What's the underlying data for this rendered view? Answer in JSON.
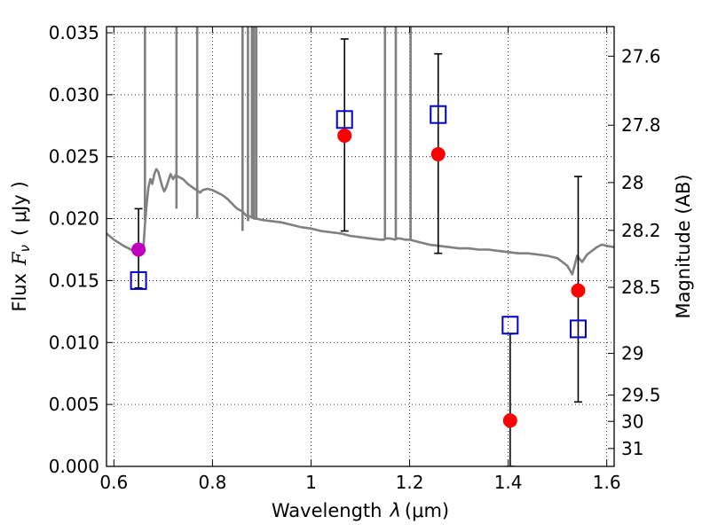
{
  "chart_data": {
    "type": "scatter",
    "xlabel_main": "Wavelength",
    "xlabel_symbol": "λ",
    "xlabel_unit": "(μm)",
    "ylabel_main": "Flux",
    "ylabel_symbol": "F",
    "ylabel_symbol_sub": "ν",
    "ylabel_unit": "( μJy )",
    "ylabel_right": "Magnitude (AB)",
    "xlim": [
      0.585,
      1.615
    ],
    "ylim": [
      0.0,
      0.0355
    ],
    "x_ticks": [
      {
        "value": 0.6,
        "label": "0.6"
      },
      {
        "value": 0.8,
        "label": "0.8"
      },
      {
        "value": 1.0,
        "label": "1"
      },
      {
        "value": 1.2,
        "label": "1.2"
      },
      {
        "value": 1.4,
        "label": "1.4"
      },
      {
        "value": 1.6,
        "label": "1.6"
      }
    ],
    "y_ticks": [
      {
        "value": 0.0,
        "label": "0.000"
      },
      {
        "value": 0.005,
        "label": "0.005"
      },
      {
        "value": 0.01,
        "label": "0.010"
      },
      {
        "value": 0.015,
        "label": "0.015"
      },
      {
        "value": 0.02,
        "label": "0.020"
      },
      {
        "value": 0.025,
        "label": "0.025"
      },
      {
        "value": 0.03,
        "label": "0.030"
      },
      {
        "value": 0.035,
        "label": "0.035"
      }
    ],
    "right_ticks": [
      {
        "label": "27.6",
        "mag": 27.6
      },
      {
        "label": "27.8",
        "mag": 27.8
      },
      {
        "label": "28",
        "mag": 28.0
      },
      {
        "label": "28.2",
        "mag": 28.2
      },
      {
        "label": "28.5",
        "mag": 28.5
      },
      {
        "label": "29",
        "mag": 29.0
      },
      {
        "label": "29.5",
        "mag": 29.5
      },
      {
        "label": "30",
        "mag": 30.0
      },
      {
        "label": "31",
        "mag": 31.0
      }
    ],
    "grid": true,
    "colors": {
      "spectrum": "#808080",
      "observed": "#ff0000",
      "observed_first": "#c000c0",
      "model": "#0000cc",
      "errorbar": "#000000"
    },
    "spectrum": {
      "x": [
        0.585,
        0.6,
        0.62,
        0.64,
        0.65,
        0.655,
        0.66,
        0.663,
        0.666,
        0.67,
        0.674,
        0.678,
        0.682,
        0.686,
        0.69,
        0.694,
        0.698,
        0.702,
        0.706,
        0.71,
        0.715,
        0.72,
        0.725,
        0.73,
        0.74,
        0.75,
        0.76,
        0.768,
        0.775,
        0.78,
        0.79,
        0.8,
        0.81,
        0.82,
        0.83,
        0.84,
        0.85,
        0.86,
        0.865,
        0.87,
        0.875,
        0.88,
        0.885,
        0.89,
        0.9,
        0.92,
        0.94,
        0.96,
        0.98,
        1.0,
        1.02,
        1.04,
        1.06,
        1.08,
        1.1,
        1.12,
        1.14,
        1.148,
        1.152,
        1.16,
        1.17,
        1.175,
        1.18,
        1.19,
        1.2,
        1.21,
        1.22,
        1.24,
        1.26,
        1.28,
        1.3,
        1.32,
        1.34,
        1.36,
        1.38,
        1.4,
        1.42,
        1.44,
        1.46,
        1.48,
        1.5,
        1.51,
        1.52,
        1.53,
        1.54,
        1.55,
        1.56,
        1.57,
        1.58,
        1.59,
        1.6,
        1.615
      ],
      "y": [
        0.0188,
        0.0183,
        0.0178,
        0.0174,
        0.0172,
        0.0175,
        0.0178,
        0.0195,
        0.021,
        0.0225,
        0.0232,
        0.0228,
        0.0236,
        0.024,
        0.0238,
        0.0232,
        0.0226,
        0.0222,
        0.0225,
        0.023,
        0.0236,
        0.0232,
        0.0235,
        0.0234,
        0.0232,
        0.0228,
        0.0225,
        0.0223,
        0.0221,
        0.0223,
        0.0224,
        0.0223,
        0.0221,
        0.0219,
        0.0216,
        0.0212,
        0.0208,
        0.0206,
        0.0204,
        0.0202,
        0.0202,
        0.0201,
        0.02,
        0.02,
        0.0199,
        0.0198,
        0.0197,
        0.0195,
        0.0193,
        0.0192,
        0.019,
        0.0189,
        0.0188,
        0.0186,
        0.0185,
        0.0184,
        0.0183,
        0.0183,
        0.0184,
        0.0184,
        0.0183,
        0.0184,
        0.0184,
        0.0183,
        0.0183,
        0.0182,
        0.0181,
        0.0179,
        0.0178,
        0.0177,
        0.0176,
        0.0176,
        0.0175,
        0.0175,
        0.0174,
        0.0173,
        0.0172,
        0.0172,
        0.0171,
        0.017,
        0.0168,
        0.0165,
        0.0162,
        0.0155,
        0.017,
        0.0165,
        0.0171,
        0.0174,
        0.0177,
        0.0179,
        0.0178,
        0.0177
      ]
    },
    "spectrum_spikes": [
      {
        "x": 0.663,
        "from": 0.0199,
        "to": 0.0355
      },
      {
        "x": 0.727,
        "from": 0.0208,
        "to": 0.0355
      },
      {
        "x": 0.769,
        "from": 0.02,
        "to": 0.0355
      },
      {
        "x": 0.861,
        "from": 0.019,
        "to": 0.0355
      },
      {
        "x": 0.872,
        "from": 0.0198,
        "to": 0.0355
      },
      {
        "x": 0.88,
        "from": 0.02,
        "to": 0.0355
      },
      {
        "x": 0.884,
        "from": 0.02,
        "to": 0.0355
      },
      {
        "x": 0.889,
        "from": 0.0199,
        "to": 0.0355
      },
      {
        "x": 1.15,
        "from": 0.0183,
        "to": 0.0355
      },
      {
        "x": 1.172,
        "from": 0.0183,
        "to": 0.0355
      },
      {
        "x": 1.202,
        "from": 0.0183,
        "to": 0.0355
      }
    ],
    "observed": [
      {
        "x": 0.65,
        "y": 0.0175,
        "yerr_low": 0.0144,
        "yerr_high": 0.0208
      },
      {
        "x": 1.068,
        "y": 0.0267,
        "yerr_low": 0.019,
        "yerr_high": 0.0345
      },
      {
        "x": 1.258,
        "y": 0.0252,
        "yerr_low": 0.0172,
        "yerr_high": 0.0333
      },
      {
        "x": 1.404,
        "y": 0.0037,
        "yerr_low": 0.0,
        "yerr_high": 0.0107
      },
      {
        "x": 1.542,
        "y": 0.0142,
        "yerr_low": 0.0052,
        "yerr_high": 0.0234
      }
    ],
    "model": [
      {
        "x": 0.65,
        "y": 0.015
      },
      {
        "x": 1.068,
        "y": 0.028
      },
      {
        "x": 1.258,
        "y": 0.0284
      },
      {
        "x": 1.404,
        "y": 0.0114
      },
      {
        "x": 1.542,
        "y": 0.0111
      }
    ]
  }
}
